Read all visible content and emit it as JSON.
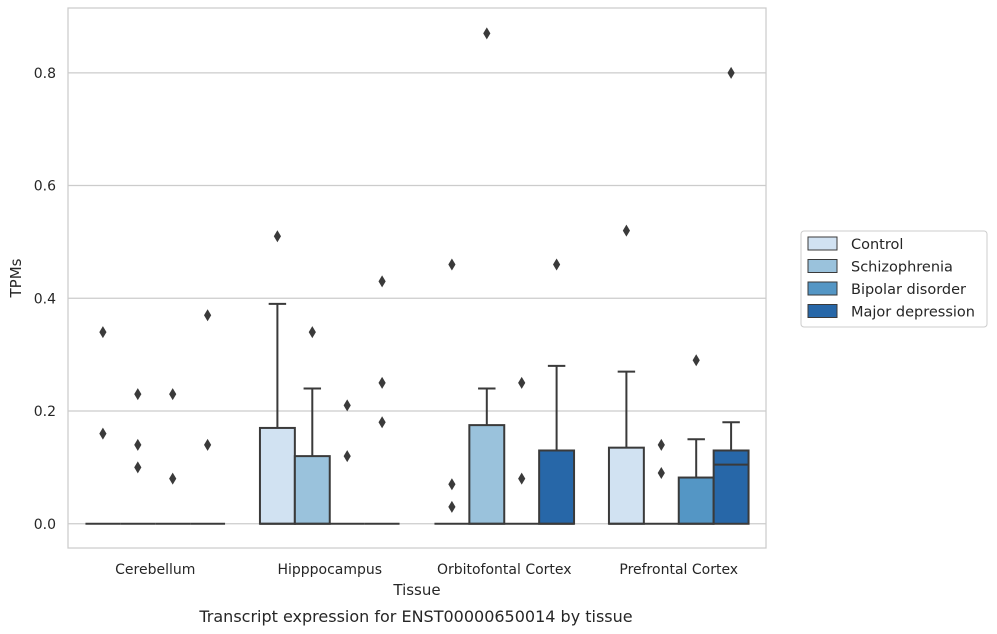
{
  "chart_data": {
    "type": "box",
    "caption": "Transcript expression for ENST00000650014 by tissue",
    "xlabel": "Tissue",
    "ylabel": "TPMs",
    "ylim": [
      -0.043,
      0.915
    ],
    "yticks": [
      0.0,
      0.2,
      0.4,
      0.6,
      0.8
    ],
    "ytick_labels": [
      "0.0",
      "0.2",
      "0.4",
      "0.6",
      "0.8"
    ],
    "grid": "horizontal",
    "legend_position": "right",
    "categories": [
      "Cerebellum",
      "Hipppocampus",
      "Orbitofontal Cortex",
      "Prefrontal Cortex"
    ],
    "series": [
      {
        "name": "Control",
        "color": "#d1e2f2",
        "boxes": [
          {
            "q1": 0,
            "median": 0,
            "q3": 0,
            "whisker_low": 0,
            "whisker_high": 0,
            "outliers": [
              0.34,
              0.16
            ]
          },
          {
            "q1": 0,
            "median": 0,
            "q3": 0.17,
            "whisker_low": 0,
            "whisker_high": 0.39,
            "outliers": [
              0.51
            ]
          },
          {
            "q1": 0,
            "median": 0,
            "q3": 0,
            "whisker_low": 0,
            "whisker_high": 0,
            "outliers": [
              0.46,
              0.07,
              0.03
            ]
          },
          {
            "q1": 0,
            "median": 0,
            "q3": 0.135,
            "whisker_low": 0,
            "whisker_high": 0.27,
            "outliers": [
              0.52
            ]
          }
        ]
      },
      {
        "name": "Schizophrenia",
        "color": "#9ac2dc",
        "boxes": [
          {
            "q1": 0,
            "median": 0,
            "q3": 0,
            "whisker_low": 0,
            "whisker_high": 0,
            "outliers": [
              0.23,
              0.14,
              0.1
            ]
          },
          {
            "q1": 0,
            "median": 0,
            "q3": 0.12,
            "whisker_low": 0,
            "whisker_high": 0.24,
            "outliers": [
              0.34
            ]
          },
          {
            "q1": 0,
            "median": 0,
            "q3": 0.175,
            "whisker_low": 0,
            "whisker_high": 0.24,
            "outliers": [
              0.87
            ]
          },
          {
            "q1": 0,
            "median": 0,
            "q3": 0,
            "whisker_low": 0,
            "whisker_high": 0,
            "outliers": [
              0.14,
              0.09
            ]
          }
        ]
      },
      {
        "name": "Bipolar disorder",
        "color": "#5496c5",
        "boxes": [
          {
            "q1": 0,
            "median": 0,
            "q3": 0,
            "whisker_low": 0,
            "whisker_high": 0,
            "outliers": [
              0.23,
              0.08
            ]
          },
          {
            "q1": 0,
            "median": 0,
            "q3": 0,
            "whisker_low": 0,
            "whisker_high": 0,
            "outliers": [
              0.21,
              0.12
            ]
          },
          {
            "q1": 0,
            "median": 0,
            "q3": 0,
            "whisker_low": 0,
            "whisker_high": 0,
            "outliers": [
              0.25,
              0.08
            ]
          },
          {
            "q1": 0,
            "median": 0,
            "q3": 0.082,
            "whisker_low": 0,
            "whisker_high": 0.15,
            "outliers": [
              0.29
            ]
          }
        ]
      },
      {
        "name": "Major depression",
        "color": "#2767a8",
        "boxes": [
          {
            "q1": 0,
            "median": 0,
            "q3": 0,
            "whisker_low": 0,
            "whisker_high": 0,
            "outliers": [
              0.37,
              0.14
            ]
          },
          {
            "q1": 0,
            "median": 0,
            "q3": 0,
            "whisker_low": 0,
            "whisker_high": 0,
            "outliers": [
              0.43,
              0.25,
              0.18
            ]
          },
          {
            "q1": 0,
            "median": 0,
            "q3": 0.13,
            "whisker_low": 0,
            "whisker_high": 0.28,
            "outliers": [
              0.46
            ]
          },
          {
            "q1": 0,
            "median": 0.105,
            "q3": 0.13,
            "whisker_low": 0,
            "whisker_high": 0.18,
            "outliers": [
              0.8
            ]
          }
        ]
      }
    ],
    "style_colors": {
      "line": "#3a3a3a",
      "grid": "#cccccc",
      "frame": "#cccccc",
      "outlier": "#3a3a3a"
    }
  }
}
